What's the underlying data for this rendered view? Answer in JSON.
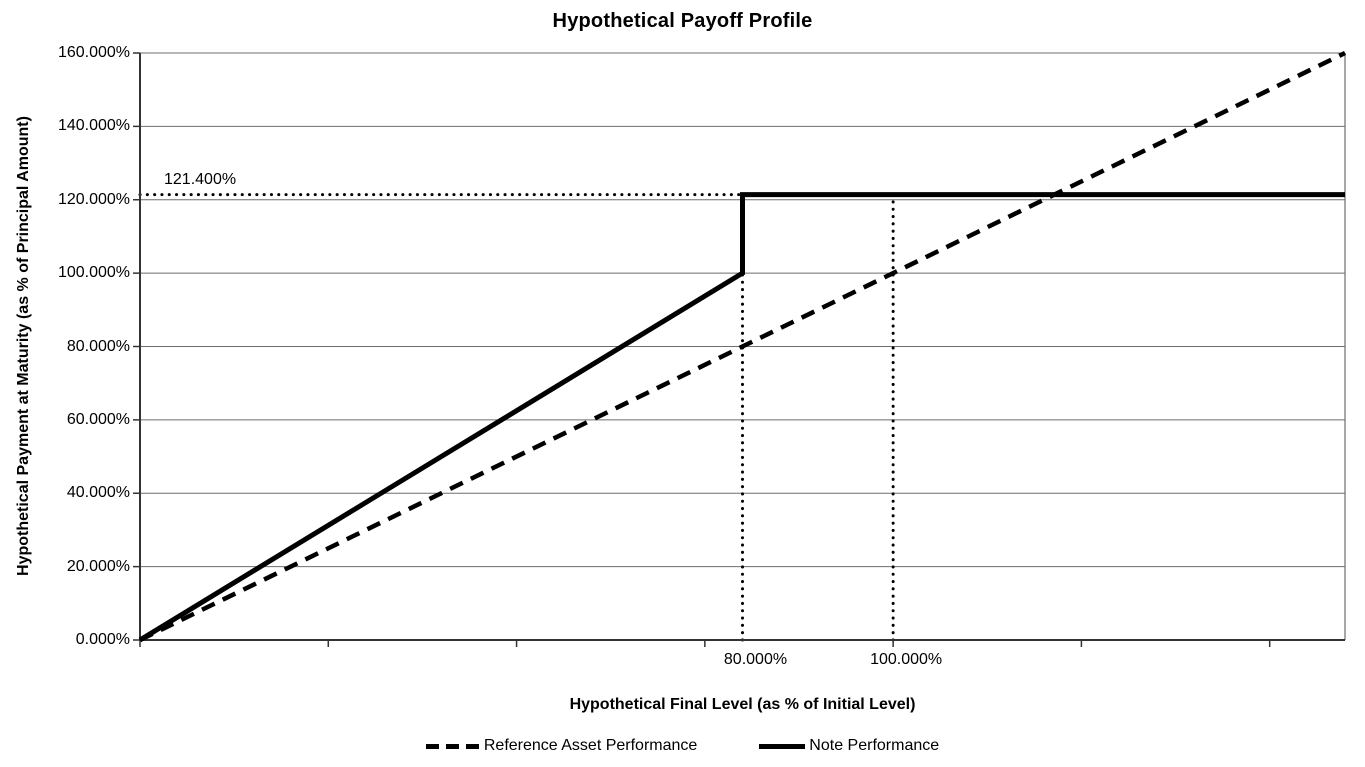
{
  "chart_data": {
    "type": "line",
    "title": "Hypothetical Payoff Profile",
    "xlabel": "Hypothetical Final Level (as % of Initial Level)",
    "ylabel": "Hypothetical Payment at Maturity (as % of Principal Amount)",
    "xlim": [
      0,
      160
    ],
    "ylim": [
      0,
      160
    ],
    "grid": "horizontal",
    "legend_position": "bottom",
    "y_ticks": [
      {
        "value": 0,
        "label": "0.000%"
      },
      {
        "value": 20,
        "label": "20.000%"
      },
      {
        "value": 40,
        "label": "40.000%"
      },
      {
        "value": 60,
        "label": "60.000%"
      },
      {
        "value": 80,
        "label": "80.000%"
      },
      {
        "value": 100,
        "label": "100.000%"
      },
      {
        "value": 120,
        "label": "120.000%"
      },
      {
        "value": 140,
        "label": "140.000%"
      },
      {
        "value": 160,
        "label": "160.000%"
      }
    ],
    "x_tick_mark_values": [
      0,
      25,
      50,
      75,
      100,
      125,
      150
    ],
    "x_labeled_ticks": [
      {
        "value": 80,
        "label": "80.000%"
      },
      {
        "value": 100,
        "label": "100.000%"
      }
    ],
    "series": [
      {
        "name": "Reference Asset Performance",
        "style": "dashed",
        "color": "#000000",
        "points": [
          [
            0,
            0
          ],
          [
            160,
            160
          ]
        ]
      },
      {
        "name": "Note Performance",
        "style": "solid",
        "color": "#000000",
        "points": [
          [
            0,
            0
          ],
          [
            80,
            100
          ],
          [
            80,
            121.4
          ],
          [
            160,
            121.4
          ]
        ]
      }
    ],
    "annotations": {
      "cap_label": "121.400%",
      "cap_value": 121.4,
      "dotted_guides": {
        "horizontal": [
          {
            "y": 121.4,
            "x_from": 0,
            "x_to": 80
          }
        ],
        "vertical": [
          {
            "x": 80,
            "y_from": 0,
            "y_to": 100
          },
          {
            "x": 100,
            "y_from": 0,
            "y_to": 121.4
          }
        ]
      }
    },
    "colors": {
      "line": "#000000",
      "gridline": "#6e6e6e",
      "axis": "#333333",
      "plot_border": "#6e6e6e",
      "text": "#000000",
      "background": "#ffffff"
    }
  }
}
